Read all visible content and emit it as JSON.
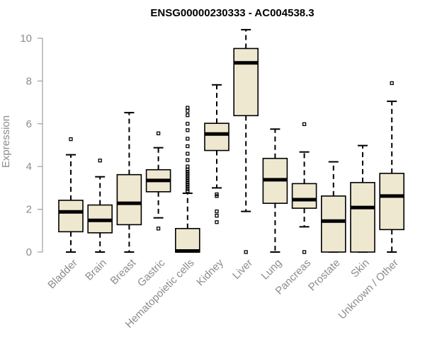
{
  "chart_data": {
    "type": "boxplot",
    "title": "ENSG00000230333 - AC004538.3",
    "ylabel": "Expression",
    "xlabel": "",
    "ylim": [
      0,
      10.5
    ],
    "yticks": [
      0,
      2,
      4,
      6,
      8,
      10
    ],
    "grid": false,
    "colors": {
      "box_fill": "#efe8d0",
      "stroke": "#000000",
      "axis": "#8c8c8c"
    },
    "categories": [
      "Bladder",
      "Brain",
      "Breast",
      "Gastric",
      "Hematopoietic cells",
      "Kidney",
      "Liver",
      "Lung",
      "Pancreas",
      "Prostate",
      "Skin",
      "Unknown / Other"
    ],
    "boxes": [
      {
        "name": "Bladder",
        "whisker_low": 0,
        "q1": 0.95,
        "median": 1.88,
        "q3": 2.42,
        "whisker_high": 4.55,
        "outliers": [
          5.28
        ]
      },
      {
        "name": "Brain",
        "whisker_low": 0,
        "q1": 0.9,
        "median": 1.48,
        "q3": 2.2,
        "whisker_high": 3.52,
        "outliers": [
          4.28
        ]
      },
      {
        "name": "Breast",
        "whisker_low": 0,
        "q1": 1.28,
        "median": 2.28,
        "q3": 3.62,
        "whisker_high": 6.52,
        "outliers": []
      },
      {
        "name": "Gastric",
        "whisker_low": 1.6,
        "q1": 2.82,
        "median": 3.35,
        "q3": 3.85,
        "whisker_high": 4.88,
        "outliers": [
          5.55,
          1.1
        ]
      },
      {
        "name": "Hematopoietic cells",
        "whisker_low": 0,
        "q1": 0,
        "median": 0.05,
        "q3": 1.1,
        "whisker_high": 2.75,
        "outliers": [
          2.85,
          2.95,
          3.05,
          3.15,
          3.25,
          3.35,
          3.45,
          3.55,
          3.65,
          3.75,
          3.85,
          4.0,
          4.3,
          4.6,
          4.95,
          5.3,
          5.7,
          6.0,
          6.4,
          6.6,
          6.75
        ]
      },
      {
        "name": "Kidney",
        "whisker_low": 3.0,
        "q1": 4.75,
        "median": 5.52,
        "q3": 6.02,
        "whisker_high": 7.82,
        "outliers": [
          2.7,
          2.62,
          1.9,
          1.7,
          1.4
        ]
      },
      {
        "name": "Liver",
        "whisker_low": 1.9,
        "q1": 6.38,
        "median": 8.85,
        "q3": 9.52,
        "whisker_high": 10.4,
        "outliers": [
          0
        ]
      },
      {
        "name": "Lung",
        "whisker_low": 0,
        "q1": 2.28,
        "median": 3.38,
        "q3": 4.38,
        "whisker_high": 5.75,
        "outliers": []
      },
      {
        "name": "Pancreas",
        "whisker_low": 1.18,
        "q1": 2.05,
        "median": 2.45,
        "q3": 3.2,
        "whisker_high": 4.68,
        "outliers": [
          5.98,
          0
        ]
      },
      {
        "name": "Prostate",
        "whisker_low": 0,
        "q1": 0,
        "median": 1.45,
        "q3": 2.62,
        "whisker_high": 4.22,
        "outliers": []
      },
      {
        "name": "Skin",
        "whisker_low": 0,
        "q1": 0,
        "median": 2.08,
        "q3": 3.25,
        "whisker_high": 4.98,
        "outliers": []
      },
      {
        "name": "Unknown / Other",
        "whisker_low": 0,
        "q1": 1.05,
        "median": 2.62,
        "q3": 3.68,
        "whisker_high": 7.05,
        "outliers": [
          7.9
        ]
      }
    ]
  }
}
